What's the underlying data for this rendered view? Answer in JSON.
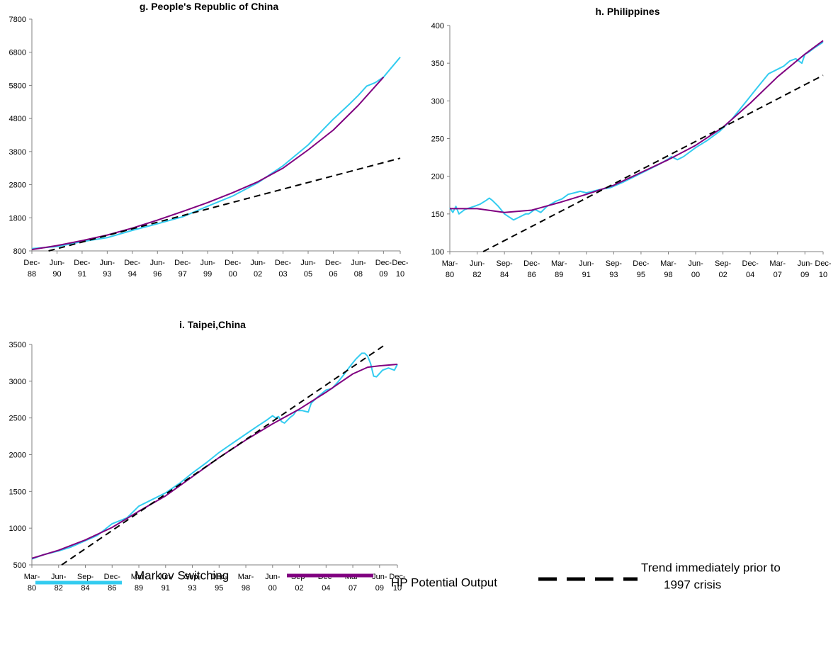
{
  "chart_data": [
    {
      "type": "line",
      "title": "g. People's Republic of China",
      "xlabel": "",
      "ylabel": "",
      "ylim": [
        800,
        7800
      ],
      "yticks": [
        800,
        1800,
        2800,
        3800,
        4800,
        5800,
        6800,
        7800
      ],
      "xlim": [
        0,
        88
      ],
      "xticks": [
        {
          "top": "Dec-",
          "bottom": "88",
          "x": 0
        },
        {
          "top": "Jun-",
          "bottom": "90",
          "x": 6
        },
        {
          "top": "Dec-",
          "bottom": "91",
          "x": 12
        },
        {
          "top": "Jun-",
          "bottom": "93",
          "x": 18
        },
        {
          "top": "Dec-",
          "bottom": "94",
          "x": 24
        },
        {
          "top": "Jun-",
          "bottom": "96",
          "x": 30
        },
        {
          "top": "Dec-",
          "bottom": "97",
          "x": 36
        },
        {
          "top": "Jun-",
          "bottom": "99",
          "x": 42
        },
        {
          "top": "Dec-",
          "bottom": "00",
          "x": 48
        },
        {
          "top": "Jun-",
          "bottom": "02",
          "x": 54
        },
        {
          "top": "Dec-",
          "bottom": "03",
          "x": 60
        },
        {
          "top": "Jun-",
          "bottom": "05",
          "x": 66
        },
        {
          "top": "Dec-",
          "bottom": "06",
          "x": 72
        },
        {
          "top": "Jun-",
          "bottom": "08",
          "x": 78
        },
        {
          "top": "Dec-",
          "bottom": "09",
          "x": 84
        },
        {
          "top": "Dec-",
          "bottom": "10",
          "x": 88
        }
      ],
      "series": [
        {
          "name": "Markov Switching",
          "color": "#33ccf0",
          "style": "solid",
          "x": [
            0,
            6,
            12,
            18,
            24,
            30,
            36,
            42,
            48,
            54,
            60,
            66,
            72,
            76,
            78,
            80,
            82,
            84,
            86,
            88
          ],
          "y": [
            870,
            930,
            1080,
            1200,
            1420,
            1620,
            1830,
            2150,
            2460,
            2860,
            3370,
            4000,
            4780,
            5250,
            5500,
            5780,
            5880,
            6050,
            6350,
            6650
          ]
        },
        {
          "name": "HP Potential Output",
          "color": "#800080",
          "style": "solid",
          "x": [
            0,
            6,
            12,
            18,
            24,
            30,
            36,
            42,
            48,
            54,
            60,
            66,
            72,
            78,
            84
          ],
          "y": [
            840,
            960,
            1110,
            1280,
            1490,
            1730,
            1990,
            2260,
            2560,
            2890,
            3300,
            3850,
            4450,
            5200,
            6050
          ]
        },
        {
          "name": "Trend immediately prior to 1997 crisis",
          "color": "#000000",
          "style": "dashed",
          "x": [
            4,
            88
          ],
          "y": [
            800,
            3600
          ]
        }
      ]
    },
    {
      "type": "line",
      "title": "h. Philippines",
      "xlabel": "",
      "ylabel": "",
      "ylim": [
        100,
        400
      ],
      "yticks": [
        100,
        150,
        200,
        250,
        300,
        350,
        400
      ],
      "xlim": [
        0,
        123
      ],
      "xticks": [
        {
          "top": "Mar-",
          "bottom": "80",
          "x": 0
        },
        {
          "top": "Jun-",
          "bottom": "82",
          "x": 9
        },
        {
          "top": "Sep-",
          "bottom": "84",
          "x": 18
        },
        {
          "top": "Dec-",
          "bottom": "86",
          "x": 27
        },
        {
          "top": "Mar-",
          "bottom": "89",
          "x": 36
        },
        {
          "top": "Jun-",
          "bottom": "91",
          "x": 45
        },
        {
          "top": "Sep-",
          "bottom": "93",
          "x": 54
        },
        {
          "top": "Dec-",
          "bottom": "95",
          "x": 63
        },
        {
          "top": "Mar-",
          "bottom": "98",
          "x": 72
        },
        {
          "top": "Jun-",
          "bottom": "00",
          "x": 81
        },
        {
          "top": "Sep-",
          "bottom": "02",
          "x": 90
        },
        {
          "top": "Dec-",
          "bottom": "04",
          "x": 99
        },
        {
          "top": "Mar-",
          "bottom": "07",
          "x": 108
        },
        {
          "top": "Jun-",
          "bottom": "09",
          "x": 117
        },
        {
          "top": "Dec-",
          "bottom": "10",
          "x": 123
        }
      ],
      "series": [
        {
          "name": "Markov Switching",
          "color": "#33ccf0",
          "style": "solid",
          "x": [
            0,
            1,
            2,
            3,
            5,
            8,
            10,
            12,
            13,
            14,
            16,
            18,
            21,
            23,
            25,
            26,
            28,
            30,
            32,
            35,
            37,
            39,
            41,
            43,
            45,
            49,
            53,
            57,
            61,
            65,
            69,
            72,
            73,
            75,
            77,
            81,
            85,
            89,
            93,
            97,
            101,
            105,
            108,
            110,
            112,
            114,
            116,
            117,
            118,
            120,
            123
          ],
          "y": [
            158,
            152,
            160,
            150,
            156,
            160,
            163,
            168,
            171,
            168,
            160,
            150,
            142,
            146,
            150,
            150,
            156,
            152,
            160,
            167,
            170,
            176,
            178,
            180,
            178,
            182,
            185,
            192,
            200,
            208,
            216,
            223,
            226,
            222,
            226,
            238,
            248,
            260,
            276,
            296,
            316,
            336,
            342,
            346,
            353,
            356,
            350,
            362,
            364,
            370,
            378
          ]
        },
        {
          "name": "HP Potential Output",
          "color": "#800080",
          "style": "solid",
          "x": [
            0,
            9,
            18,
            27,
            36,
            45,
            54,
            63,
            72,
            81,
            90,
            99,
            108,
            117,
            123
          ],
          "y": [
            157,
            157,
            152,
            155,
            165,
            176,
            188,
            205,
            222,
            241,
            265,
            297,
            332,
            362,
            380
          ]
        },
        {
          "name": "Trend immediately prior to 1997 crisis",
          "color": "#000000",
          "style": "dashed",
          "x": [
            11,
            123
          ],
          "y": [
            100,
            334
          ]
        }
      ]
    },
    {
      "type": "line",
      "title": "i. Taipei,China",
      "xlabel": "",
      "ylabel": "",
      "ylim": [
        500,
        3500
      ],
      "yticks": [
        500,
        1000,
        1500,
        2000,
        2500,
        3000,
        3500
      ],
      "xlim": [
        0,
        123
      ],
      "xticks": [
        {
          "top": "Mar-",
          "bottom": "80",
          "x": 0
        },
        {
          "top": "Jun-",
          "bottom": "82",
          "x": 9
        },
        {
          "top": "Sep-",
          "bottom": "84",
          "x": 18
        },
        {
          "top": "Dec-",
          "bottom": "86",
          "x": 27
        },
        {
          "top": "Mar-",
          "bottom": "89",
          "x": 36
        },
        {
          "top": "Jun-",
          "bottom": "91",
          "x": 45
        },
        {
          "top": "Sep-",
          "bottom": "93",
          "x": 54
        },
        {
          "top": "Dec-",
          "bottom": "95",
          "x": 63
        },
        {
          "top": "Mar-",
          "bottom": "98",
          "x": 72
        },
        {
          "top": "Jun-",
          "bottom": "00",
          "x": 81
        },
        {
          "top": "Sep-",
          "bottom": "02",
          "x": 90
        },
        {
          "top": "Dec-",
          "bottom": "04",
          "x": 99
        },
        {
          "top": "Mar-",
          "bottom": "07",
          "x": 108
        },
        {
          "top": "Jun-",
          "bottom": "09",
          "x": 117
        },
        {
          "top": "Dec-",
          "bottom": "10",
          "x": 123
        }
      ],
      "series": [
        {
          "name": "Markov Switching",
          "color": "#33ccf0",
          "style": "solid",
          "x": [
            0,
            4,
            9,
            13,
            18,
            22,
            27,
            32,
            36,
            41,
            45,
            50,
            54,
            59,
            63,
            68,
            72,
            76,
            79,
            81,
            82,
            83,
            84,
            85,
            87,
            88,
            89,
            90,
            91,
            93,
            94,
            96,
            99,
            101,
            103,
            105,
            107,
            109,
            111,
            112,
            113,
            114,
            115,
            116,
            118,
            120,
            122,
            123
          ],
          "y": [
            580,
            640,
            690,
            740,
            830,
            900,
            1060,
            1140,
            1300,
            1400,
            1480,
            1620,
            1750,
            1900,
            2030,
            2170,
            2280,
            2390,
            2470,
            2530,
            2500,
            2520,
            2450,
            2430,
            2510,
            2540,
            2600,
            2600,
            2600,
            2580,
            2700,
            2780,
            2880,
            2900,
            2990,
            3090,
            3200,
            3300,
            3380,
            3380,
            3340,
            3240,
            3070,
            3060,
            3150,
            3180,
            3150,
            3230
          ]
        },
        {
          "name": "HP Potential Output",
          "color": "#800080",
          "style": "solid",
          "x": [
            0,
            9,
            18,
            27,
            36,
            45,
            54,
            63,
            72,
            81,
            90,
            99,
            104,
            108,
            113,
            117,
            123
          ],
          "y": [
            590,
            700,
            840,
            1010,
            1230,
            1440,
            1700,
            1960,
            2200,
            2420,
            2620,
            2850,
            2990,
            3100,
            3190,
            3210,
            3230
          ]
        },
        {
          "name": "Trend immediately prior to 1997 crisis",
          "color": "#000000",
          "style": "dashed",
          "x": [
            10,
            119
          ],
          "y": [
            500,
            3500
          ]
        }
      ]
    }
  ],
  "legend": {
    "markov_label": "Markov Switching",
    "hp_label": "HP Potential Output",
    "trend_label_line1": "Trend immediately prior to",
    "trend_label_line2": "1997 crisis",
    "markov_color": "#33ccf0",
    "hp_color": "#800080",
    "trend_color": "#000000"
  }
}
